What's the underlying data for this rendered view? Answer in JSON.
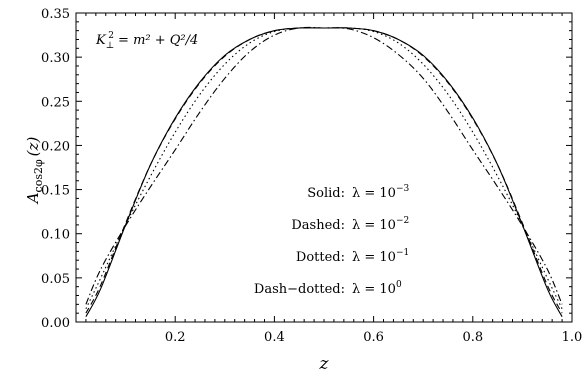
{
  "chart_data": {
    "type": "line",
    "xlabel": "z",
    "ylabel": "A",
    "ylabel_subscript": "cos2φ",
    "ylabel_suffix": "(z)",
    "xlim": [
      0.0,
      1.0
    ],
    "ylim": [
      0.0,
      0.35
    ],
    "x_ticks": [
      "0.2",
      "0.4",
      "0.6",
      "0.8",
      "1.0"
    ],
    "y_ticks": [
      "0.00",
      "0.05",
      "0.10",
      "0.15",
      "0.20",
      "0.25",
      "0.30",
      "0.35"
    ],
    "annotation": {
      "base": "K",
      "sub": "⊥",
      "sup": "2",
      "rest": " = m² + Q²/4"
    },
    "legend": [
      {
        "style": "Solid:",
        "lambda_prefix": "λ = 10",
        "exp": "−3"
      },
      {
        "style": "Dashed:",
        "lambda_prefix": "λ = 10",
        "exp": "−2"
      },
      {
        "style": "Dotted:",
        "lambda_prefix": "λ = 10",
        "exp": "−1"
      },
      {
        "style": "Dash−dotted:",
        "lambda_prefix": "λ = 10",
        "exp": "0"
      }
    ],
    "series": [
      {
        "dash": "solid",
        "x": [
          0.02,
          0.05,
          0.1,
          0.15,
          0.2,
          0.25,
          0.3,
          0.35,
          0.4,
          0.45,
          0.5,
          0.55,
          0.6,
          0.65,
          0.7,
          0.75,
          0.8,
          0.85,
          0.9,
          0.95,
          0.98
        ],
        "values": [
          0.006,
          0.038,
          0.11,
          0.178,
          0.231,
          0.272,
          0.302,
          0.32,
          0.33,
          0.333,
          0.333,
          0.333,
          0.33,
          0.32,
          0.302,
          0.272,
          0.231,
          0.178,
          0.11,
          0.038,
          0.006
        ]
      },
      {
        "dash": "dashed",
        "x": [
          0.02,
          0.05,
          0.1,
          0.15,
          0.2,
          0.25,
          0.3,
          0.35,
          0.4,
          0.45,
          0.5,
          0.55,
          0.6,
          0.65,
          0.7,
          0.75,
          0.8,
          0.85,
          0.9,
          0.95,
          0.98
        ],
        "values": [
          0.01,
          0.042,
          0.112,
          0.178,
          0.23,
          0.271,
          0.301,
          0.32,
          0.33,
          0.333,
          0.333,
          0.333,
          0.33,
          0.32,
          0.301,
          0.271,
          0.23,
          0.178,
          0.112,
          0.042,
          0.01
        ]
      },
      {
        "dash": "dotted",
        "x": [
          0.02,
          0.05,
          0.1,
          0.15,
          0.2,
          0.25,
          0.3,
          0.35,
          0.4,
          0.45,
          0.5,
          0.55,
          0.6,
          0.65,
          0.7,
          0.75,
          0.8,
          0.85,
          0.9,
          0.95,
          0.98
        ],
        "values": [
          0.015,
          0.05,
          0.11,
          0.165,
          0.215,
          0.258,
          0.292,
          0.316,
          0.329,
          0.333,
          0.333,
          0.333,
          0.329,
          0.316,
          0.292,
          0.258,
          0.215,
          0.165,
          0.11,
          0.05,
          0.015
        ]
      },
      {
        "dash": "dashdot",
        "x": [
          0.02,
          0.05,
          0.1,
          0.15,
          0.2,
          0.25,
          0.3,
          0.35,
          0.4,
          0.45,
          0.5,
          0.55,
          0.6,
          0.65,
          0.7,
          0.75,
          0.8,
          0.85,
          0.9,
          0.95,
          0.98
        ],
        "values": [
          0.02,
          0.06,
          0.109,
          0.153,
          0.195,
          0.238,
          0.276,
          0.306,
          0.325,
          0.333,
          0.333,
          0.332,
          0.322,
          0.303,
          0.276,
          0.238,
          0.195,
          0.153,
          0.109,
          0.06,
          0.02
        ]
      }
    ]
  }
}
